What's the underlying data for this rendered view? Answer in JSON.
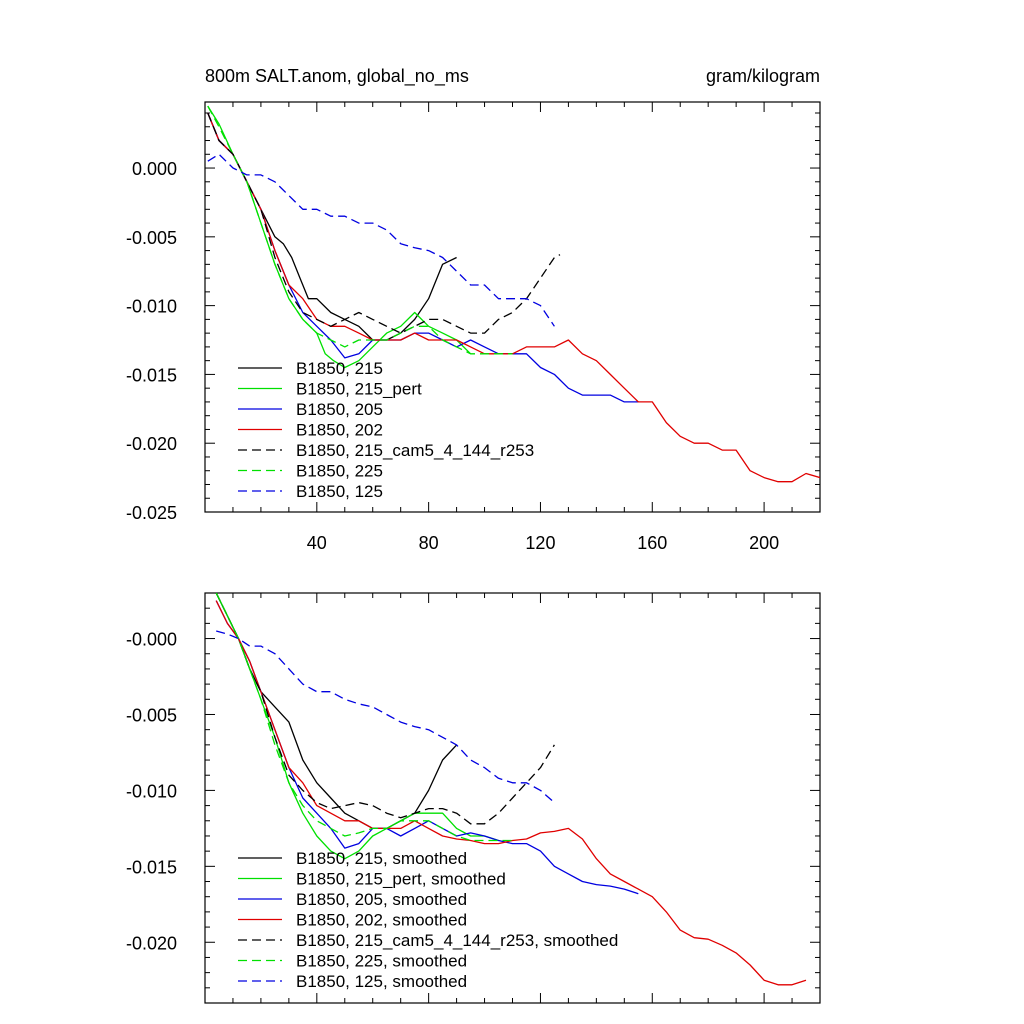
{
  "chart_data": [
    {
      "type": "line",
      "title": "800m SALT.anom, global_no_ms",
      "units": "gram/kilogram",
      "xlim": [
        0,
        220
      ],
      "ylim": [
        -0.025,
        0.0048
      ],
      "xticks": [
        40,
        80,
        120,
        160,
        200
      ],
      "xtick_labels": [
        "40",
        "80",
        "120",
        "160",
        "200"
      ],
      "yticks": [
        0.0,
        -0.005,
        -0.01,
        -0.015,
        -0.02,
        -0.025
      ],
      "ytick_labels": [
        "0.000",
        "-0.005",
        "-0.010",
        "-0.015",
        "-0.020",
        "-0.025"
      ],
      "legend_position": "bottom-left",
      "series": [
        {
          "name": "B1850, 215",
          "color": "#000000",
          "dash": "solid",
          "x": [
            1,
            5,
            10,
            15,
            20,
            25,
            28,
            31,
            34,
            37,
            40,
            45,
            50,
            55,
            60,
            65,
            70,
            75,
            80,
            85,
            90
          ],
          "y": [
            0.004,
            0.002,
            0.001,
            -0.001,
            -0.003,
            -0.005,
            -0.0055,
            -0.0065,
            -0.008,
            -0.0095,
            -0.0095,
            -0.0105,
            -0.011,
            -0.0115,
            -0.0125,
            -0.0125,
            -0.012,
            -0.011,
            -0.0095,
            -0.007,
            -0.0065
          ]
        },
        {
          "name": "B1850, 215_pert",
          "color": "#00e000",
          "dash": "solid",
          "x": [
            1,
            5,
            10,
            15,
            20,
            25,
            30,
            35,
            40,
            43,
            46,
            50,
            55,
            60,
            65,
            70,
            75,
            80,
            85,
            90,
            95
          ],
          "y": [
            0.0045,
            0.0032,
            0.001,
            -0.001,
            -0.004,
            -0.007,
            -0.0095,
            -0.011,
            -0.012,
            -0.0135,
            -0.014,
            -0.0145,
            -0.014,
            -0.013,
            -0.012,
            -0.0115,
            -0.0105,
            -0.0115,
            -0.012,
            -0.0125,
            -0.0135
          ]
        },
        {
          "name": "B1850, 205",
          "color": "#0000e0",
          "dash": "solid",
          "x": [
            1,
            5,
            10,
            15,
            20,
            25,
            30,
            35,
            40,
            45,
            50,
            55,
            60,
            65,
            70,
            75,
            80,
            85,
            90,
            95,
            100,
            105,
            110,
            115,
            120,
            125,
            130,
            135,
            140,
            145,
            150,
            155
          ],
          "y": [
            0.004,
            0.002,
            0.001,
            -0.001,
            -0.003,
            -0.006,
            -0.0085,
            -0.0105,
            -0.0115,
            -0.0125,
            -0.0138,
            -0.0135,
            -0.0125,
            -0.0125,
            -0.0125,
            -0.012,
            -0.012,
            -0.0125,
            -0.013,
            -0.0125,
            -0.013,
            -0.0135,
            -0.0135,
            -0.0135,
            -0.0145,
            -0.015,
            -0.016,
            -0.0165,
            -0.0165,
            -0.0165,
            -0.017,
            -0.017
          ]
        },
        {
          "name": "B1850, 202",
          "color": "#e00000",
          "dash": "solid",
          "x": [
            1,
            5,
            10,
            15,
            20,
            25,
            30,
            35,
            40,
            45,
            50,
            55,
            60,
            65,
            70,
            75,
            80,
            85,
            90,
            95,
            100,
            105,
            110,
            115,
            120,
            125,
            130,
            135,
            140,
            145,
            150,
            155,
            160,
            165,
            170,
            175,
            180,
            185,
            190,
            195,
            200,
            205,
            210,
            215,
            220
          ],
          "y": [
            0.004,
            0.002,
            0.001,
            -0.001,
            -0.003,
            -0.006,
            -0.0085,
            -0.0095,
            -0.011,
            -0.0115,
            -0.0115,
            -0.012,
            -0.0125,
            -0.0125,
            -0.0125,
            -0.012,
            -0.0125,
            -0.0125,
            -0.0125,
            -0.013,
            -0.0135,
            -0.0135,
            -0.0135,
            -0.013,
            -0.013,
            -0.013,
            -0.0125,
            -0.0135,
            -0.014,
            -0.015,
            -0.016,
            -0.017,
            -0.017,
            -0.0185,
            -0.0195,
            -0.02,
            -0.02,
            -0.0205,
            -0.0205,
            -0.022,
            -0.0225,
            -0.0228,
            -0.0228,
            -0.0222,
            -0.0225
          ]
        },
        {
          "name": "B1850, 215_cam5_4_144_r253",
          "color": "#000000",
          "dash": "dash",
          "x": [
            1,
            5,
            10,
            15,
            20,
            25,
            30,
            35,
            40,
            45,
            50,
            55,
            60,
            65,
            70,
            75,
            80,
            85,
            90,
            95,
            100,
            105,
            110,
            115,
            120,
            125,
            127
          ],
          "y": [
            0.004,
            0.002,
            0.001,
            -0.001,
            -0.003,
            -0.0065,
            -0.009,
            -0.0105,
            -0.011,
            -0.0115,
            -0.011,
            -0.0105,
            -0.011,
            -0.0115,
            -0.012,
            -0.0115,
            -0.011,
            -0.011,
            -0.0115,
            -0.012,
            -0.012,
            -0.011,
            -0.0105,
            -0.0095,
            -0.008,
            -0.0065,
            -0.0063
          ]
        },
        {
          "name": "B1850, 225",
          "color": "#00e000",
          "dash": "dash",
          "x": [
            1,
            5,
            10,
            15,
            20,
            25,
            30,
            35,
            40,
            45,
            50,
            55,
            60,
            65,
            70,
            75,
            80,
            85,
            90,
            95,
            100,
            105,
            110
          ],
          "y": [
            0.0045,
            0.003,
            0.001,
            -0.001,
            -0.004,
            -0.007,
            -0.0095,
            -0.011,
            -0.012,
            -0.0125,
            -0.013,
            -0.0125,
            -0.0125,
            -0.0125,
            -0.012,
            -0.0115,
            -0.0115,
            -0.0125,
            -0.013,
            -0.0135,
            -0.0135,
            -0.0135,
            -0.0135
          ]
        },
        {
          "name": "B1850, 125",
          "color": "#0000e0",
          "dash": "dash",
          "x": [
            1,
            5,
            10,
            15,
            20,
            25,
            30,
            35,
            40,
            45,
            50,
            55,
            60,
            65,
            70,
            75,
            80,
            85,
            90,
            95,
            100,
            105,
            110,
            115,
            120,
            125
          ],
          "y": [
            0.0005,
            0.001,
            0.0,
            -0.0005,
            -0.0005,
            -0.001,
            -0.002,
            -0.003,
            -0.003,
            -0.0035,
            -0.0035,
            -0.004,
            -0.004,
            -0.0045,
            -0.0055,
            -0.0058,
            -0.006,
            -0.0065,
            -0.0075,
            -0.0085,
            -0.0085,
            -0.0095,
            -0.0095,
            -0.0095,
            -0.01,
            -0.0115
          ]
        }
      ]
    },
    {
      "type": "line",
      "title": "",
      "xlim": [
        0,
        220
      ],
      "ylim": [
        -0.024,
        0.003
      ],
      "xticks": [
        40,
        80,
        120,
        160,
        200
      ],
      "xtick_labels": [],
      "yticks": [
        0.0,
        -0.005,
        -0.01,
        -0.015,
        -0.02
      ],
      "ytick_labels": [
        "-0.000",
        "-0.005",
        "-0.010",
        "-0.015",
        "-0.020"
      ],
      "legend_position": "bottom-left",
      "series": [
        {
          "name": "B1850, 215, smoothed",
          "color": "#000000",
          "dash": "solid",
          "x": [
            4,
            8,
            12,
            16,
            20,
            25,
            30,
            35,
            40,
            45,
            50,
            55,
            60,
            65,
            70,
            75,
            80,
            85,
            90
          ],
          "y": [
            0.003,
            0.0015,
            0.0,
            -0.002,
            -0.0035,
            -0.0045,
            -0.0055,
            -0.008,
            -0.0095,
            -0.0105,
            -0.0115,
            -0.012,
            -0.0125,
            -0.0125,
            -0.012,
            -0.0115,
            -0.01,
            -0.008,
            -0.007
          ]
        },
        {
          "name": "B1850, 215_pert, smoothed",
          "color": "#00e000",
          "dash": "solid",
          "x": [
            4,
            8,
            12,
            16,
            20,
            25,
            30,
            35,
            40,
            45,
            50,
            55,
            60,
            65,
            70,
            75,
            80,
            85,
            90,
            95,
            100,
            105
          ],
          "y": [
            0.003,
            0.0015,
            0.0,
            -0.002,
            -0.004,
            -0.0065,
            -0.0095,
            -0.0115,
            -0.013,
            -0.014,
            -0.0145,
            -0.014,
            -0.013,
            -0.0125,
            -0.012,
            -0.0115,
            -0.0115,
            -0.0115,
            -0.0125,
            -0.013,
            -0.013,
            -0.0133
          ]
        },
        {
          "name": "B1850, 205, smoothed",
          "color": "#0000e0",
          "dash": "solid",
          "x": [
            4,
            8,
            12,
            16,
            20,
            25,
            30,
            35,
            40,
            45,
            50,
            55,
            60,
            65,
            70,
            75,
            80,
            85,
            90,
            95,
            100,
            105,
            110,
            115,
            120,
            125,
            130,
            135,
            140,
            145,
            150,
            155
          ],
          "y": [
            0.0025,
            0.001,
            0.0,
            -0.0015,
            -0.0035,
            -0.006,
            -0.0085,
            -0.0105,
            -0.0115,
            -0.0125,
            -0.0138,
            -0.0135,
            -0.0125,
            -0.0125,
            -0.013,
            -0.0125,
            -0.012,
            -0.0125,
            -0.013,
            -0.0128,
            -0.013,
            -0.0133,
            -0.0135,
            -0.0135,
            -0.014,
            -0.015,
            -0.0155,
            -0.016,
            -0.0162,
            -0.0163,
            -0.0165,
            -0.0168
          ]
        },
        {
          "name": "B1850, 202, smoothed",
          "color": "#e00000",
          "dash": "solid",
          "x": [
            4,
            8,
            12,
            16,
            20,
            25,
            30,
            35,
            40,
            45,
            50,
            55,
            60,
            65,
            70,
            75,
            80,
            85,
            90,
            95,
            100,
            105,
            110,
            115,
            120,
            125,
            130,
            135,
            140,
            145,
            150,
            155,
            160,
            165,
            170,
            175,
            180,
            185,
            190,
            195,
            200,
            205,
            210,
            215
          ],
          "y": [
            0.0025,
            0.001,
            0.0,
            -0.0015,
            -0.0035,
            -0.006,
            -0.0085,
            -0.0095,
            -0.011,
            -0.0115,
            -0.012,
            -0.012,
            -0.0125,
            -0.0125,
            -0.0125,
            -0.012,
            -0.0125,
            -0.013,
            -0.0132,
            -0.0133,
            -0.0135,
            -0.0135,
            -0.0133,
            -0.0132,
            -0.0128,
            -0.0127,
            -0.0125,
            -0.0132,
            -0.0145,
            -0.0155,
            -0.016,
            -0.0165,
            -0.017,
            -0.018,
            -0.0192,
            -0.0197,
            -0.0198,
            -0.0202,
            -0.0207,
            -0.0215,
            -0.0225,
            -0.0228,
            -0.0228,
            -0.0225
          ]
        },
        {
          "name": "B1850, 215_cam5_4_144_r253, smoothed",
          "color": "#000000",
          "dash": "dash",
          "x": [
            4,
            8,
            12,
            16,
            20,
            25,
            30,
            35,
            40,
            45,
            50,
            55,
            60,
            65,
            70,
            75,
            80,
            85,
            90,
            95,
            100,
            105,
            110,
            115,
            120,
            125
          ],
          "y": [
            0.003,
            0.0015,
            0.0,
            -0.002,
            -0.0035,
            -0.0065,
            -0.009,
            -0.01,
            -0.0108,
            -0.0112,
            -0.011,
            -0.0108,
            -0.011,
            -0.0115,
            -0.0118,
            -0.0115,
            -0.0112,
            -0.0112,
            -0.0115,
            -0.0122,
            -0.0122,
            -0.0115,
            -0.0105,
            -0.0095,
            -0.0085,
            -0.007
          ]
        },
        {
          "name": "B1850, 225, smoothed",
          "color": "#00e000",
          "dash": "dash",
          "x": [
            4,
            8,
            12,
            16,
            20,
            25,
            30,
            35,
            40,
            45,
            50,
            55,
            60,
            65,
            70,
            75,
            80,
            85,
            90,
            95,
            100,
            105,
            110
          ],
          "y": [
            0.003,
            0.0015,
            0.0,
            -0.002,
            -0.004,
            -0.007,
            -0.0095,
            -0.011,
            -0.012,
            -0.0125,
            -0.013,
            -0.0128,
            -0.0125,
            -0.0125,
            -0.012,
            -0.012,
            -0.012,
            -0.0125,
            -0.013,
            -0.0133,
            -0.0133,
            -0.0133,
            -0.0133
          ]
        },
        {
          "name": "B1850, 125, smoothed",
          "color": "#0000e0",
          "dash": "dash",
          "x": [
            4,
            8,
            12,
            16,
            20,
            25,
            30,
            35,
            40,
            45,
            50,
            55,
            60,
            65,
            70,
            75,
            80,
            85,
            90,
            95,
            100,
            105,
            110,
            115,
            120,
            125
          ],
          "y": [
            0.0005,
            0.0003,
            0.0,
            -0.0005,
            -0.0005,
            -0.001,
            -0.002,
            -0.003,
            -0.0035,
            -0.0035,
            -0.004,
            -0.0043,
            -0.0045,
            -0.005,
            -0.0055,
            -0.0058,
            -0.006,
            -0.0065,
            -0.007,
            -0.008,
            -0.0085,
            -0.0092,
            -0.0095,
            -0.0095,
            -0.01,
            -0.0108
          ]
        }
      ]
    }
  ]
}
